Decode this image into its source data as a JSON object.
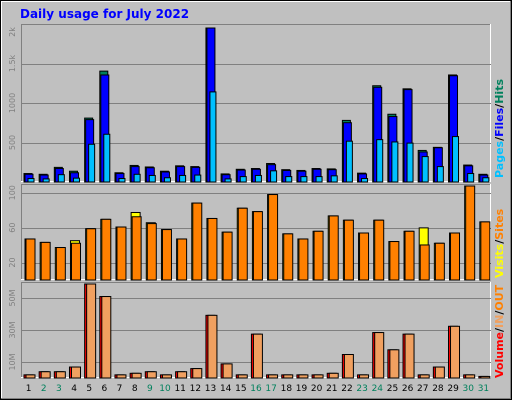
{
  "title": "Daily usage for July 2022",
  "colors": {
    "background": "#C0C0C0",
    "plot": "#C0C0C0",
    "title": "#0000FF",
    "hits": "#00805C",
    "files": "#0000FF",
    "pages": "#00C0FF",
    "visits": "#FFFF00",
    "sites": "#FF8000",
    "kbytes": "#FF0000",
    "kbytes_out": "#F0A060",
    "weekend_label": "#00805C"
  },
  "legend_top": {
    "pages": "Pages",
    "files": "Files",
    "hits": "Hits",
    "sep": "/"
  },
  "legend_mid": {
    "visits": "Visits",
    "sites": "Sites",
    "sep": "/"
  },
  "legend_bot": {
    "volume": "Volume",
    "in": "IN",
    "out": "OUT",
    "sep": "/"
  },
  "chart_data": [
    {
      "type": "bar",
      "name": "hits-files-pages",
      "ylim": [
        0,
        2000
      ],
      "yticks": [
        500,
        1000,
        1500,
        2000
      ],
      "ytick_labels": [
        "500",
        "1000",
        "1.5k",
        "2k"
      ],
      "categories": [
        "1",
        "2",
        "3",
        "4",
        "5",
        "6",
        "7",
        "8",
        "9",
        "10",
        "11",
        "12",
        "13",
        "14",
        "15",
        "16",
        "17",
        "18",
        "19",
        "20",
        "21",
        "22",
        "23",
        "24",
        "25",
        "26",
        "27",
        "28",
        "29",
        "30",
        "31"
      ],
      "weekend_days": [
        2,
        3,
        9,
        10,
        16,
        17,
        23,
        24,
        30,
        31
      ],
      "series": [
        {
          "name": "Hits",
          "values": [
            110,
            100,
            190,
            140,
            830,
            1440,
            120,
            215,
            195,
            140,
            210,
            200,
            2000,
            105,
            165,
            175,
            240,
            160,
            150,
            175,
            170,
            800,
            115,
            1250,
            880,
            1210,
            410,
            450,
            1390,
            220,
            100
          ]
        },
        {
          "name": "Files",
          "values": [
            100,
            90,
            175,
            120,
            810,
            1390,
            110,
            200,
            185,
            130,
            200,
            190,
            2000,
            95,
            155,
            165,
            225,
            150,
            140,
            165,
            160,
            770,
            105,
            1230,
            850,
            1200,
            390,
            445,
            1380,
            210,
            90
          ]
        },
        {
          "name": "Pages",
          "values": [
            45,
            40,
            95,
            50,
            490,
            620,
            45,
            100,
            85,
            55,
            85,
            90,
            1170,
            40,
            70,
            85,
            145,
            70,
            70,
            70,
            80,
            530,
            45,
            550,
            520,
            505,
            330,
            200,
            590,
            110,
            55
          ]
        }
      ]
    },
    {
      "type": "bar",
      "name": "visits-sites",
      "ylim": [
        0,
        110
      ],
      "yticks": [
        20,
        60,
        100
      ],
      "ytick_labels": [
        "20",
        "60",
        "100"
      ],
      "series": [
        {
          "name": "Visits",
          "values": [
            48,
            44,
            38,
            46,
            60,
            71,
            62,
            79,
            67,
            59,
            48,
            90,
            72,
            56,
            84,
            80,
            100,
            54,
            48,
            57,
            75,
            70,
            55,
            70,
            45,
            57,
            61,
            43,
            55,
            115,
            68
          ]
        },
        {
          "name": "Sites",
          "values": [
            48,
            44,
            38,
            43,
            60,
            71,
            62,
            74,
            66,
            59,
            48,
            90,
            72,
            56,
            84,
            80,
            100,
            54,
            48,
            57,
            75,
            70,
            55,
            70,
            45,
            57,
            41,
            43,
            55,
            115,
            68
          ]
        }
      ]
    },
    {
      "type": "bar",
      "name": "volume-in-out",
      "ylim": [
        0,
        60
      ],
      "yticks": [
        10,
        30,
        50
      ],
      "ytick_labels": [
        "10M",
        "30M",
        "50M"
      ],
      "series": [
        {
          "name": "IN",
          "values": [
            2,
            4,
            4,
            7,
            60,
            52,
            2,
            3,
            4,
            2,
            4,
            6,
            40,
            9,
            2,
            28,
            2,
            2,
            2,
            2,
            3,
            15,
            2,
            29,
            18,
            28,
            2,
            7,
            33,
            2,
            1
          ]
        },
        {
          "name": "OUT",
          "values": [
            2,
            4,
            4,
            7,
            60,
            52,
            2,
            3,
            4,
            2,
            4,
            6,
            40,
            9,
            2,
            28,
            2,
            2,
            2,
            2,
            3,
            15,
            2,
            29,
            18,
            28,
            2,
            7,
            33,
            2,
            1
          ]
        }
      ]
    }
  ]
}
